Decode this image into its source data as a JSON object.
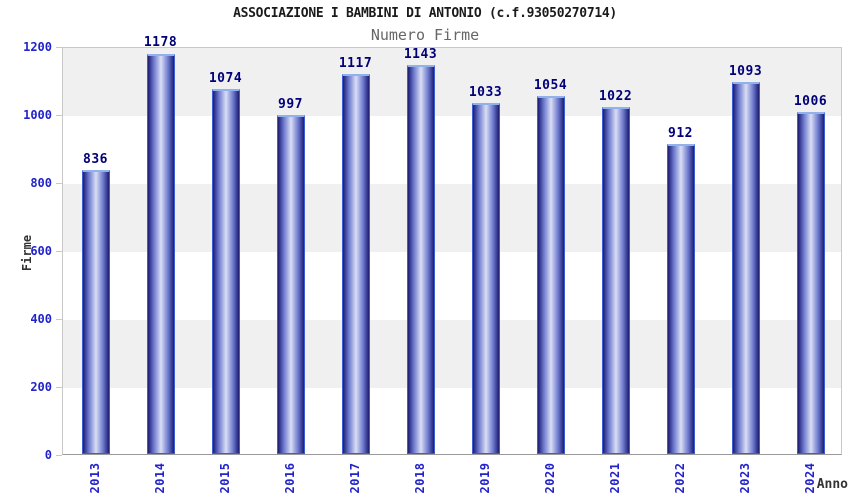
{
  "chart_data": {
    "type": "bar",
    "title": "ASSOCIAZIONE I BAMBINI DI ANTONIO (c.f.93050270714)",
    "subtitle": "Numero Firme",
    "xlabel": "Anno",
    "ylabel": "Firme",
    "categories": [
      "2013",
      "2014",
      "2015",
      "2016",
      "2017",
      "2018",
      "2019",
      "2020",
      "2021",
      "2022",
      "2023",
      "2024"
    ],
    "values": [
      836,
      1178,
      1074,
      997,
      1117,
      1143,
      1033,
      1054,
      1022,
      912,
      1093,
      1006
    ],
    "ylim": [
      0,
      1200
    ],
    "yticks": [
      0,
      200,
      400,
      600,
      800,
      1000,
      1200
    ],
    "grid": "alternating-horizontal-bands",
    "legend": "none",
    "colors": {
      "title": "#1a1a1a",
      "subtitle": "#666666",
      "axis_title": "#333333",
      "tick_label": "#2323cc",
      "value_label": "#000078",
      "band_a": "#f0f0f0",
      "band_b": "#ffffff",
      "bar_dark": "#1c1c72",
      "bar_mid": "#6b77cc",
      "bar_light": "#d9def5",
      "bar_border": "#3c5ed0",
      "bar_cap": "#8fb2ec",
      "plot_border": "#c8c8c8",
      "axis_line": "#9a9a9a"
    }
  }
}
